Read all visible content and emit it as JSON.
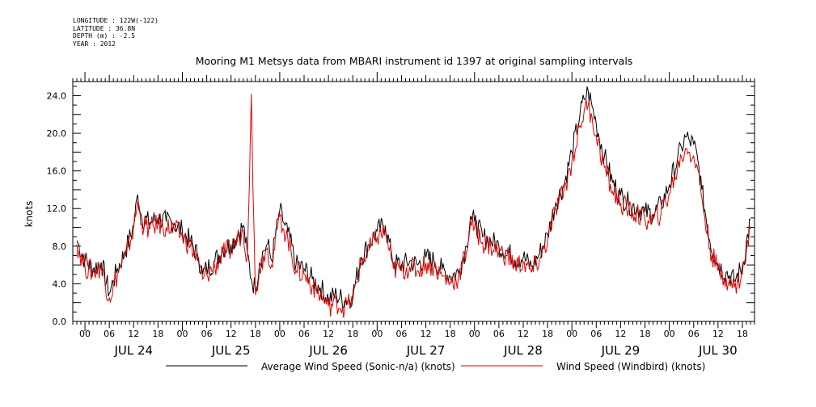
{
  "metadata": {
    "lines": [
      "LONGITUDE : 122W(-122)",
      "LATITUDE : 36.8N",
      "DEPTH (m) : -2.5",
      "YEAR : 2012"
    ]
  },
  "chart_data": {
    "type": "line",
    "title": "Mooring M1 Metsys data from MBARI instrument id 1397 at original sampling intervals",
    "ylabel": "knots",
    "ylim": [
      0,
      25.5
    ],
    "yticks": [
      "0.0",
      "4.0",
      "8.0",
      "12.0",
      "16.0",
      "20.0",
      "24.0"
    ],
    "ytick_values": [
      0,
      4,
      8,
      12,
      16,
      20,
      24
    ],
    "xlim_hours": [
      -3,
      165
    ],
    "hour_labels": [
      "00",
      "06",
      "12",
      "18",
      "00",
      "06",
      "12",
      "18",
      "00",
      "06",
      "12",
      "18",
      "00",
      "06",
      "12",
      "18",
      "00",
      "06",
      "12",
      "18",
      "00",
      "06",
      "12",
      "18",
      "00",
      "06",
      "12",
      "18"
    ],
    "day_labels": [
      "JUL 24",
      "JUL 25",
      "JUL 26",
      "JUL 27",
      "JUL 28",
      "JUL 29",
      "JUL 30"
    ],
    "series": [
      {
        "name": "Average Wind Speed (Sonic-n/a) (knots)",
        "color": "#000000",
        "points": [
          [
            -2,
            8.6
          ],
          [
            0,
            6.5
          ],
          [
            2,
            5.6
          ],
          [
            4,
            6.3
          ],
          [
            6,
            3.0
          ],
          [
            8,
            5.6
          ],
          [
            10,
            7.5
          ],
          [
            12,
            10.2
          ],
          [
            13,
            13.5
          ],
          [
            14,
            11.0
          ],
          [
            16,
            10.5
          ],
          [
            18,
            11.0
          ],
          [
            20,
            10.6
          ],
          [
            22,
            10.5
          ],
          [
            24,
            9.6
          ],
          [
            26,
            8.5
          ],
          [
            28,
            6.8
          ],
          [
            29,
            5.0
          ],
          [
            30,
            5.6
          ],
          [
            32,
            6.4
          ],
          [
            34,
            7.8
          ],
          [
            36,
            8.2
          ],
          [
            38,
            9.5
          ],
          [
            39,
            10.2
          ],
          [
            40,
            7.2
          ],
          [
            41,
            4.5
          ],
          [
            42,
            3.5
          ],
          [
            43,
            6.2
          ],
          [
            44,
            7.5
          ],
          [
            45,
            8.2
          ],
          [
            46,
            6.5
          ],
          [
            48,
            11.8
          ],
          [
            49,
            10.5
          ],
          [
            50,
            9.5
          ],
          [
            52,
            6.0
          ],
          [
            54,
            5.6
          ],
          [
            56,
            4.5
          ],
          [
            58,
            3.6
          ],
          [
            60,
            2.4
          ],
          [
            62,
            2.8
          ],
          [
            64,
            2.2
          ],
          [
            66,
            2.8
          ],
          [
            68,
            6.8
          ],
          [
            70,
            8.2
          ],
          [
            72,
            9.6
          ],
          [
            74,
            10.2
          ],
          [
            76,
            6.2
          ],
          [
            78,
            6.0
          ],
          [
            80,
            6.4
          ],
          [
            82,
            6.0
          ],
          [
            84,
            6.8
          ],
          [
            86,
            6.4
          ],
          [
            88,
            5.5
          ],
          [
            90,
            4.8
          ],
          [
            92,
            5.2
          ],
          [
            94,
            8.0
          ],
          [
            95,
            11.2
          ],
          [
            96,
            10.6
          ],
          [
            98,
            9.0
          ],
          [
            100,
            8.6
          ],
          [
            102,
            8.0
          ],
          [
            104,
            7.5
          ],
          [
            106,
            6.5
          ],
          [
            108,
            6.8
          ],
          [
            110,
            5.8
          ],
          [
            112,
            7.2
          ],
          [
            114,
            9.2
          ],
          [
            116,
            12.6
          ],
          [
            118,
            14.5
          ],
          [
            120,
            18.0
          ],
          [
            122,
            22.0
          ],
          [
            123,
            23.6
          ],
          [
            124,
            24.5
          ],
          [
            125,
            22.8
          ],
          [
            126,
            21.0
          ],
          [
            128,
            17.5
          ],
          [
            130,
            14.8
          ],
          [
            132,
            13.4
          ],
          [
            134,
            12.5
          ],
          [
            136,
            12.1
          ],
          [
            138,
            11.6
          ],
          [
            140,
            11.4
          ],
          [
            142,
            12.4
          ],
          [
            144,
            14.5
          ],
          [
            146,
            17.2
          ],
          [
            147,
            18.5
          ],
          [
            148,
            19.6
          ],
          [
            149,
            19.2
          ],
          [
            150,
            18.8
          ],
          [
            151,
            17.2
          ],
          [
            152,
            14.0
          ],
          [
            154,
            8.5
          ],
          [
            156,
            6.0
          ],
          [
            158,
            5.2
          ],
          [
            160,
            4.3
          ],
          [
            162,
            5.8
          ],
          [
            164,
            10.8
          ]
        ]
      },
      {
        "name": "Wind Speed (Windbird) (knots)",
        "color": "#e00000",
        "points": [
          [
            -2,
            8.2
          ],
          [
            0,
            5.8
          ],
          [
            2,
            5.2
          ],
          [
            4,
            5.8
          ],
          [
            6,
            2.5
          ],
          [
            8,
            5.0
          ],
          [
            10,
            7.0
          ],
          [
            12,
            9.8
          ],
          [
            13,
            12.8
          ],
          [
            14,
            10.4
          ],
          [
            16,
            9.8
          ],
          [
            18,
            10.4
          ],
          [
            20,
            10.0
          ],
          [
            22,
            9.8
          ],
          [
            24,
            9.0
          ],
          [
            26,
            8.0
          ],
          [
            28,
            6.2
          ],
          [
            29,
            4.5
          ],
          [
            30,
            5.0
          ],
          [
            32,
            5.8
          ],
          [
            34,
            7.2
          ],
          [
            36,
            7.6
          ],
          [
            38,
            9.0
          ],
          [
            39,
            9.6
          ],
          [
            40,
            6.8
          ],
          [
            41,
            24.2
          ],
          [
            41.4,
            14.0
          ],
          [
            42,
            2.8
          ],
          [
            43,
            5.6
          ],
          [
            44,
            7.0
          ],
          [
            45,
            7.8
          ],
          [
            46,
            6.0
          ],
          [
            48,
            11.2
          ],
          [
            49,
            9.8
          ],
          [
            50,
            8.8
          ],
          [
            52,
            5.4
          ],
          [
            54,
            5.0
          ],
          [
            56,
            3.8
          ],
          [
            58,
            2.8
          ],
          [
            60,
            1.6
          ],
          [
            62,
            2.0
          ],
          [
            64,
            1.5
          ],
          [
            66,
            2.2
          ],
          [
            68,
            6.2
          ],
          [
            70,
            7.6
          ],
          [
            72,
            9.0
          ],
          [
            74,
            9.6
          ],
          [
            76,
            5.6
          ],
          [
            78,
            5.4
          ],
          [
            80,
            5.8
          ],
          [
            82,
            5.4
          ],
          [
            84,
            6.2
          ],
          [
            86,
            5.8
          ],
          [
            88,
            4.8
          ],
          [
            90,
            4.2
          ],
          [
            92,
            4.6
          ],
          [
            94,
            7.4
          ],
          [
            95,
            10.6
          ],
          [
            96,
            10.0
          ],
          [
            98,
            8.4
          ],
          [
            100,
            8.0
          ],
          [
            102,
            7.4
          ],
          [
            104,
            7.0
          ],
          [
            106,
            6.0
          ],
          [
            108,
            6.2
          ],
          [
            110,
            5.2
          ],
          [
            112,
            6.6
          ],
          [
            114,
            8.6
          ],
          [
            116,
            12.0
          ],
          [
            118,
            13.8
          ],
          [
            120,
            17.0
          ],
          [
            122,
            20.8
          ],
          [
            123,
            22.4
          ],
          [
            124,
            23.0
          ],
          [
            125,
            21.6
          ],
          [
            126,
            19.8
          ],
          [
            128,
            16.4
          ],
          [
            130,
            13.8
          ],
          [
            132,
            12.6
          ],
          [
            134,
            11.8
          ],
          [
            136,
            11.4
          ],
          [
            138,
            10.8
          ],
          [
            140,
            10.8
          ],
          [
            142,
            11.6
          ],
          [
            144,
            13.6
          ],
          [
            146,
            16.2
          ],
          [
            147,
            17.4
          ],
          [
            148,
            18.4
          ],
          [
            149,
            18.0
          ],
          [
            150,
            17.6
          ],
          [
            151,
            16.2
          ],
          [
            152,
            13.2
          ],
          [
            154,
            7.8
          ],
          [
            156,
            5.4
          ],
          [
            158,
            4.6
          ],
          [
            160,
            3.6
          ],
          [
            162,
            5.0
          ],
          [
            164,
            9.8
          ]
        ]
      }
    ],
    "legend_placement": "bottom",
    "grid": false
  }
}
